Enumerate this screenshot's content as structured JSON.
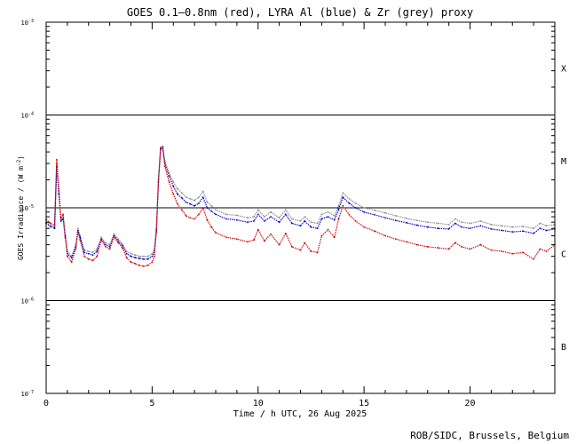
{
  "chart_data": {
    "type": "line",
    "title": "GOES 0.1—0.8nm (red), LYRA Al (blue) & Zr (grey) proxy",
    "xlabel": "Time / h UTC, 26 Aug 2025",
    "ylabel_main": "GOES Irradiance / (W m",
    "ylabel_exp": "-2",
    "ylabel_close": ")",
    "xlim": [
      0,
      24
    ],
    "ylim": [
      1e-07,
      0.001
    ],
    "yscale": "log",
    "x_ticks": [
      0,
      5,
      10,
      15,
      20
    ],
    "x_tick_labels": [
      "0",
      "5",
      "10",
      "15",
      "20"
    ],
    "y_ticks": [
      {
        "value": 0.001,
        "exp": "-3"
      },
      {
        "value": 0.0001,
        "exp": "-4"
      },
      {
        "value": 1e-05,
        "exp": "-5"
      },
      {
        "value": 1e-06,
        "exp": "-6"
      },
      {
        "value": 1e-07,
        "exp": "-7"
      }
    ],
    "y_tick_base": "10",
    "reference_lines": [
      0.0001,
      1e-05,
      1e-06
    ],
    "flare_classes": [
      {
        "label": "X",
        "value": 0.00032
      },
      {
        "label": "M",
        "value": 3.2e-05
      },
      {
        "label": "C",
        "value": 3.2e-06
      },
      {
        "label": "B",
        "value": 3.2e-07
      }
    ],
    "series": [
      {
        "key": "zr",
        "color": "#8c8c8c",
        "x": [
          0.0,
          0.2,
          0.4,
          0.5,
          0.6,
          0.7,
          0.8,
          0.9,
          1.0,
          1.2,
          1.4,
          1.5,
          1.6,
          1.8,
          2.0,
          2.2,
          2.4,
          2.6,
          2.8,
          3.0,
          3.2,
          3.4,
          3.6,
          3.8,
          4.0,
          4.2,
          4.4,
          4.6,
          4.8,
          5.0,
          5.1,
          5.2,
          5.3,
          5.4,
          5.5,
          5.6,
          5.8,
          6.0,
          6.2,
          6.4,
          6.6,
          6.8,
          7.0,
          7.2,
          7.4,
          7.6,
          7.8,
          8.0,
          8.5,
          9.0,
          9.5,
          9.8,
          10.0,
          10.3,
          10.6,
          11.0,
          11.3,
          11.6,
          12.0,
          12.2,
          12.5,
          12.8,
          13.0,
          13.3,
          13.6,
          13.8,
          14.0,
          14.3,
          14.6,
          15.0,
          15.5,
          16.0,
          16.5,
          17.0,
          17.5,
          18.0,
          18.5,
          19.0,
          19.3,
          19.6,
          20.0,
          20.5,
          21.0,
          21.5,
          22.0,
          22.5,
          23.0,
          23.3,
          23.6,
          24.0
        ],
        "y": [
          7e-06,
          6.5e-06,
          6.2e-06,
          3e-05,
          1.5e-05,
          7.5e-06,
          8e-06,
          5e-06,
          3.4e-06,
          3e-06,
          4e-06,
          6e-06,
          5e-06,
          3.5e-06,
          3.4e-06,
          3.3e-06,
          3.6e-06,
          4.8e-06,
          4.2e-06,
          4e-06,
          5.2e-06,
          4.6e-06,
          4.1e-06,
          3.4e-06,
          3.2e-06,
          3.1e-06,
          3e-06,
          3e-06,
          3e-06,
          3.2e-06,
          3.5e-06,
          6e-06,
          2e-05,
          4.5e-05,
          4.6e-05,
          3.2e-05,
          2.4e-05,
          1.9e-05,
          1.6e-05,
          1.45e-05,
          1.3e-05,
          1.25e-05,
          1.2e-05,
          1.3e-05,
          1.5e-05,
          1.15e-05,
          1.05e-05,
          9.5e-06,
          8.5e-06,
          8.3e-06,
          7.8e-06,
          8e-06,
          9.5e-06,
          8e-06,
          9e-06,
          7.8e-06,
          9.5e-06,
          7.6e-06,
          7.2e-06,
          8e-06,
          7e-06,
          6.8e-06,
          8.5e-06,
          9e-06,
          8.2e-06,
          1.05e-05,
          1.45e-05,
          1.25e-05,
          1.12e-05,
          1e-05,
          9.4e-06,
          8.8e-06,
          8.2e-06,
          7.7e-06,
          7.3e-06,
          7e-06,
          6.8e-06,
          6.6e-06,
          7.6e-06,
          7e-06,
          6.8e-06,
          7.2e-06,
          6.6e-06,
          6.4e-06,
          6.2e-06,
          6.3e-06,
          6e-06,
          6.8e-06,
          6.4e-06,
          6.6e-06
        ]
      },
      {
        "key": "al",
        "color": "#0000cc",
        "x": [
          0.0,
          0.2,
          0.4,
          0.5,
          0.6,
          0.7,
          0.8,
          0.9,
          1.0,
          1.2,
          1.4,
          1.5,
          1.6,
          1.8,
          2.0,
          2.2,
          2.4,
          2.6,
          2.8,
          3.0,
          3.2,
          3.4,
          3.6,
          3.8,
          4.0,
          4.2,
          4.4,
          4.6,
          4.8,
          5.0,
          5.1,
          5.2,
          5.3,
          5.4,
          5.5,
          5.6,
          5.8,
          6.0,
          6.2,
          6.4,
          6.6,
          6.8,
          7.0,
          7.2,
          7.4,
          7.6,
          7.8,
          8.0,
          8.5,
          9.0,
          9.5,
          9.8,
          10.0,
          10.3,
          10.6,
          11.0,
          11.3,
          11.6,
          12.0,
          12.2,
          12.5,
          12.8,
          13.0,
          13.3,
          13.6,
          13.8,
          14.0,
          14.3,
          14.6,
          15.0,
          15.5,
          16.0,
          16.5,
          17.0,
          17.5,
          18.0,
          18.5,
          19.0,
          19.3,
          19.6,
          20.0,
          20.5,
          21.0,
          21.5,
          22.0,
          22.5,
          23.0,
          23.3,
          23.6,
          24.0
        ],
        "y": [
          6.8e-06,
          6.3e-06,
          6e-06,
          2.8e-05,
          1.4e-05,
          7.2e-06,
          7.6e-06,
          4.8e-06,
          3.2e-06,
          2.9e-06,
          3.8e-06,
          5.7e-06,
          4.8e-06,
          3.3e-06,
          3.2e-06,
          3.1e-06,
          3.4e-06,
          4.6e-06,
          4e-06,
          3.8e-06,
          5e-06,
          4.4e-06,
          3.9e-06,
          3.2e-06,
          3e-06,
          2.9e-06,
          2.85e-06,
          2.8e-06,
          2.8e-06,
          3e-06,
          3.3e-06,
          5.7e-06,
          1.9e-05,
          4.3e-05,
          4.4e-05,
          3e-05,
          2.2e-05,
          1.7e-05,
          1.4e-05,
          1.28e-05,
          1.15e-05,
          1.1e-05,
          1.05e-05,
          1.12e-05,
          1.3e-05,
          1e-05,
          9.2e-06,
          8.5e-06,
          7.6e-06,
          7.4e-06,
          7e-06,
          7.2e-06,
          8.5e-06,
          7.2e-06,
          8e-06,
          7e-06,
          8.5e-06,
          6.8e-06,
          6.4e-06,
          7.2e-06,
          6.2e-06,
          6e-06,
          7.6e-06,
          8e-06,
          7.4e-06,
          9.6e-06,
          1.3e-05,
          1.12e-05,
          1e-05,
          9e-06,
          8.4e-06,
          7.8e-06,
          7.3e-06,
          6.9e-06,
          6.5e-06,
          6.2e-06,
          6e-06,
          5.9e-06,
          6.8e-06,
          6.2e-06,
          6e-06,
          6.4e-06,
          5.9e-06,
          5.7e-06,
          5.5e-06,
          5.6e-06,
          5.3e-06,
          6e-06,
          5.7e-06,
          5.9e-06
        ]
      },
      {
        "key": "goes",
        "color": "#dd0000",
        "x": [
          0.0,
          0.2,
          0.4,
          0.5,
          0.6,
          0.7,
          0.8,
          0.9,
          1.0,
          1.2,
          1.4,
          1.5,
          1.6,
          1.8,
          2.0,
          2.2,
          2.4,
          2.6,
          2.8,
          3.0,
          3.2,
          3.4,
          3.6,
          3.8,
          4.0,
          4.2,
          4.4,
          4.6,
          4.8,
          5.0,
          5.1,
          5.2,
          5.3,
          5.4,
          5.5,
          5.6,
          5.8,
          6.0,
          6.2,
          6.4,
          6.6,
          6.8,
          7.0,
          7.2,
          7.4,
          7.6,
          7.8,
          8.0,
          8.5,
          9.0,
          9.5,
          9.8,
          10.0,
          10.3,
          10.6,
          11.0,
          11.3,
          11.6,
          12.0,
          12.2,
          12.5,
          12.8,
          13.0,
          13.3,
          13.6,
          13.8,
          14.0,
          14.3,
          14.6,
          15.0,
          15.5,
          16.0,
          16.5,
          17.0,
          17.5,
          18.0,
          18.5,
          19.0,
          19.3,
          19.6,
          20.0,
          20.5,
          21.0,
          21.5,
          22.0,
          22.5,
          23.0,
          23.3,
          23.6,
          24.0
        ],
        "y": [
          7.5e-06,
          6.8e-06,
          6.5e-06,
          3.3e-05,
          1.6e-05,
          7.8e-06,
          8.5e-06,
          5e-06,
          3e-06,
          2.6e-06,
          3.6e-06,
          5.5e-06,
          4.5e-06,
          3e-06,
          2.8e-06,
          2.7e-06,
          3e-06,
          4.5e-06,
          3.8e-06,
          3.6e-06,
          4.8e-06,
          4.2e-06,
          3.7e-06,
          2.9e-06,
          2.6e-06,
          2.5e-06,
          2.4e-06,
          2.35e-06,
          2.4e-06,
          2.6e-06,
          3e-06,
          5.5e-06,
          2e-05,
          4.4e-05,
          4.5e-05,
          2.8e-05,
          1.9e-05,
          1.4e-05,
          1.1e-05,
          9.5e-06,
          8.2e-06,
          7.8e-06,
          7.6e-06,
          8.5e-06,
          1e-05,
          7.4e-06,
          6.2e-06,
          5.4e-06,
          4.8e-06,
          4.6e-06,
          4.3e-06,
          4.5e-06,
          5.8e-06,
          4.4e-06,
          5.2e-06,
          4e-06,
          5.3e-06,
          3.8e-06,
          3.5e-06,
          4.2e-06,
          3.4e-06,
          3.3e-06,
          5e-06,
          5.8e-06,
          4.8e-06,
          7.6e-06,
          1.05e-05,
          8.4e-06,
          7.2e-06,
          6.2e-06,
          5.6e-06,
          5e-06,
          4.6e-06,
          4.3e-06,
          4e-06,
          3.8e-06,
          3.7e-06,
          3.6e-06,
          4.2e-06,
          3.8e-06,
          3.6e-06,
          4e-06,
          3.5e-06,
          3.4e-06,
          3.2e-06,
          3.3e-06,
          2.8e-06,
          3.6e-06,
          3.4e-06,
          4e-06
        ]
      }
    ]
  },
  "credit": "ROB/SIDC, Brussels, Belgium"
}
